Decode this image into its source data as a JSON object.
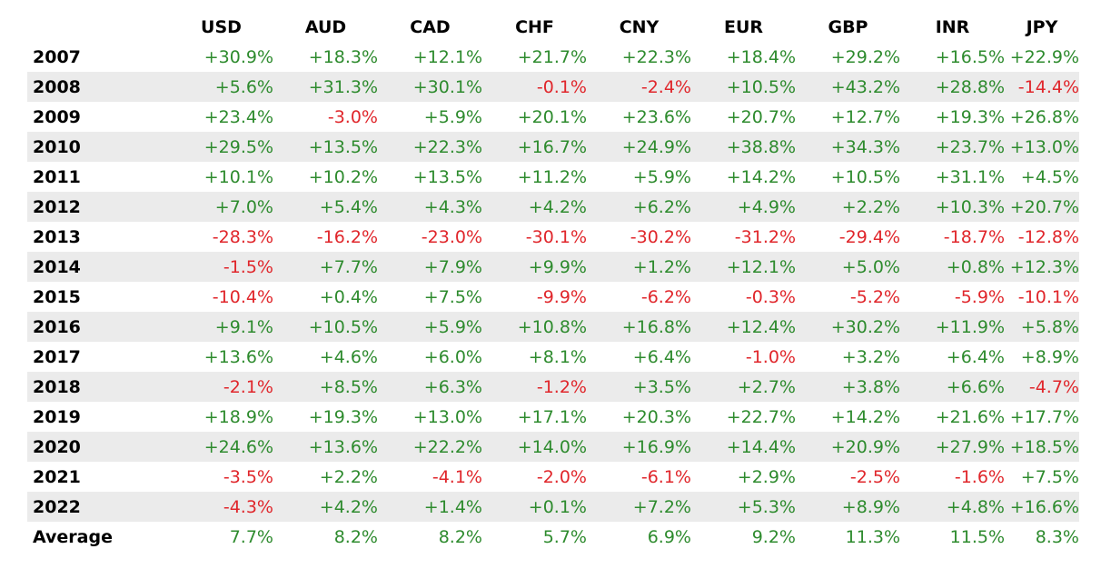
{
  "chart_data": {
    "type": "table",
    "title": "",
    "columns": [
      "USD",
      "AUD",
      "CAD",
      "CHF",
      "CNY",
      "EUR",
      "GBP",
      "INR",
      "JPY"
    ],
    "rows": [
      {
        "label": "2007",
        "values": [
          "+30.9%",
          "+18.3%",
          "+12.1%",
          "+21.7%",
          "+22.3%",
          "+18.4%",
          "+29.2%",
          "+16.5%",
          "+22.9%"
        ]
      },
      {
        "label": "2008",
        "values": [
          "+5.6%",
          "+31.3%",
          "+30.1%",
          "-0.1%",
          "-2.4%",
          "+10.5%",
          "+43.2%",
          "+28.8%",
          "-14.4%"
        ]
      },
      {
        "label": "2009",
        "values": [
          "+23.4%",
          "-3.0%",
          "+5.9%",
          "+20.1%",
          "+23.6%",
          "+20.7%",
          "+12.7%",
          "+19.3%",
          "+26.8%"
        ]
      },
      {
        "label": "2010",
        "values": [
          "+29.5%",
          "+13.5%",
          "+22.3%",
          "+16.7%",
          "+24.9%",
          "+38.8%",
          "+34.3%",
          "+23.7%",
          "+13.0%"
        ]
      },
      {
        "label": "2011",
        "values": [
          "+10.1%",
          "+10.2%",
          "+13.5%",
          "+11.2%",
          "+5.9%",
          "+14.2%",
          "+10.5%",
          "+31.1%",
          "+4.5%"
        ]
      },
      {
        "label": "2012",
        "values": [
          "+7.0%",
          "+5.4%",
          "+4.3%",
          "+4.2%",
          "+6.2%",
          "+4.9%",
          "+2.2%",
          "+10.3%",
          "+20.7%"
        ]
      },
      {
        "label": "2013",
        "values": [
          "-28.3%",
          "-16.2%",
          "-23.0%",
          "-30.1%",
          "-30.2%",
          "-31.2%",
          "-29.4%",
          "-18.7%",
          "-12.8%"
        ]
      },
      {
        "label": "2014",
        "values": [
          "-1.5%",
          "+7.7%",
          "+7.9%",
          "+9.9%",
          "+1.2%",
          "+12.1%",
          "+5.0%",
          "+0.8%",
          "+12.3%"
        ]
      },
      {
        "label": "2015",
        "values": [
          "-10.4%",
          "+0.4%",
          "+7.5%",
          "-9.9%",
          "-6.2%",
          "-0.3%",
          "-5.2%",
          "-5.9%",
          "-10.1%"
        ]
      },
      {
        "label": "2016",
        "values": [
          "+9.1%",
          "+10.5%",
          "+5.9%",
          "+10.8%",
          "+16.8%",
          "+12.4%",
          "+30.2%",
          "+11.9%",
          "+5.8%"
        ]
      },
      {
        "label": "2017",
        "values": [
          "+13.6%",
          "+4.6%",
          "+6.0%",
          "+8.1%",
          "+6.4%",
          "-1.0%",
          "+3.2%",
          "+6.4%",
          "+8.9%"
        ]
      },
      {
        "label": "2018",
        "values": [
          "-2.1%",
          "+8.5%",
          "+6.3%",
          "-1.2%",
          "+3.5%",
          "+2.7%",
          "+3.8%",
          "+6.6%",
          "-4.7%"
        ]
      },
      {
        "label": "2019",
        "values": [
          "+18.9%",
          "+19.3%",
          "+13.0%",
          "+17.1%",
          "+20.3%",
          "+22.7%",
          "+14.2%",
          "+21.6%",
          "+17.7%"
        ]
      },
      {
        "label": "2020",
        "values": [
          "+24.6%",
          "+13.6%",
          "+22.2%",
          "+14.0%",
          "+16.9%",
          "+14.4%",
          "+20.9%",
          "+27.9%",
          "+18.5%"
        ]
      },
      {
        "label": "2021",
        "values": [
          "-3.5%",
          "+2.2%",
          "-4.1%",
          "-2.0%",
          "-6.1%",
          "+2.9%",
          "-2.5%",
          "-1.6%",
          "+7.5%"
        ]
      },
      {
        "label": "2022",
        "values": [
          "-4.3%",
          "+4.2%",
          "+1.4%",
          "+0.1%",
          "+7.2%",
          "+5.3%",
          "+8.9%",
          "+4.8%",
          "+16.6%"
        ]
      },
      {
        "label": "Average",
        "values": [
          "7.7%",
          "8.2%",
          "8.2%",
          "5.7%",
          "6.9%",
          "9.2%",
          "11.3%",
          "11.5%",
          "8.3%"
        ]
      }
    ],
    "positive_color": "#2e8b2e",
    "negative_color": "#e0262b",
    "alt_row_color": "#ebebeb"
  }
}
